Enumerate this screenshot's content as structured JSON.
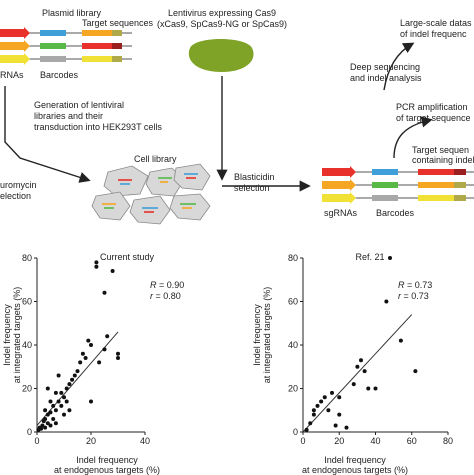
{
  "schematic": {
    "plasmid_library": "Plasmid library",
    "target_sequences": "Target sequences",
    "sgrnas_cut": "RNAs",
    "barcodes_left": "Barcodes",
    "lentivirus_line1": "Lentivirus expressing Cas9",
    "lentivirus_line2": "(xCas9, SpCas9-NG or SpCas9)",
    "generation_line1": "Generation of lentiviral",
    "generation_line2": "libraries and their",
    "generation_line3": "transduction into HEK293T cells",
    "puromycin_line1": "uromycin",
    "puromycin_line2": "election",
    "cell_library": "Cell library",
    "blasticidin_line1": "Blasticidin",
    "blasticidin_line2": "selection",
    "target_containing_line1": "Target sequen",
    "target_containing_line2": "containing indel",
    "sgrnas_right": "sgRNAs",
    "barcodes_right": "Barcodes",
    "pcr_line1": "PCR amplification",
    "pcr_line2": "of target sequence",
    "deep_line1": "Deep sequencing",
    "deep_line2": "and indel analysis",
    "large_line1": "Large-scale datas",
    "large_line2": "of indel frequenc"
  },
  "colors": {
    "red": "#e8312a",
    "orange": "#f5a623",
    "yellow": "#f2e135",
    "blue": "#3f9fd8",
    "green": "#58b947",
    "gray": "#a8a8a8",
    "olive": "#b0a94a",
    "darkred": "#9c1f1f",
    "virus": "#7fa326",
    "cell": "#d8d8d8",
    "cell_stroke": "#888888"
  },
  "chart_data": [
    {
      "type": "scatter",
      "title": "Current study",
      "xlabel_line1": "Indel frequency",
      "xlabel_line2": "at endogenous targets (%)",
      "ylabel_line1": "Indel frequency",
      "ylabel_line2": "at integrated targets (%)",
      "R_label": "R",
      "R_value": " = 0.90",
      "r_label": "r",
      "r_value": " = 0.80",
      "xlim": [
        0,
        40
      ],
      "ylim": [
        0,
        80
      ],
      "xticks": [
        "0",
        "20",
        "40"
      ],
      "yticks": [
        "0",
        "20",
        "40",
        "60",
        "80"
      ],
      "fit": [
        [
          0,
          3
        ],
        [
          30,
          46
        ]
      ],
      "points": [
        [
          0.5,
          1
        ],
        [
          1,
          2
        ],
        [
          1.5,
          1.5
        ],
        [
          2,
          3
        ],
        [
          2.5,
          5
        ],
        [
          3,
          6
        ],
        [
          3,
          2
        ],
        [
          4,
          4
        ],
        [
          4,
          8
        ],
        [
          5,
          3
        ],
        [
          5,
          9
        ],
        [
          6,
          6
        ],
        [
          6,
          12
        ],
        [
          7,
          10
        ],
        [
          7,
          4
        ],
        [
          8,
          14
        ],
        [
          9,
          18
        ],
        [
          10,
          8
        ],
        [
          10,
          16
        ],
        [
          11,
          20
        ],
        [
          12,
          22
        ],
        [
          12,
          10
        ],
        [
          13,
          24
        ],
        [
          14,
          26
        ],
        [
          15,
          28
        ],
        [
          16,
          32
        ],
        [
          17,
          36
        ],
        [
          18,
          34
        ],
        [
          19,
          42
        ],
        [
          20,
          14
        ],
        [
          20,
          40
        ],
        [
          22,
          76
        ],
        [
          22,
          78
        ],
        [
          23,
          32
        ],
        [
          25,
          64
        ],
        [
          25,
          38
        ],
        [
          26,
          44
        ],
        [
          28,
          74
        ],
        [
          30,
          34
        ],
        [
          30,
          36
        ],
        [
          3,
          10
        ],
        [
          5,
          14
        ],
        [
          8,
          26
        ],
        [
          4,
          20
        ],
        [
          7,
          18
        ],
        [
          9,
          12
        ],
        [
          11,
          14
        ]
      ]
    },
    {
      "type": "scatter",
      "title": "Ref. 21",
      "xlabel_line1": "Indel frequency",
      "xlabel_line2": "at endogenous targets (%)",
      "ylabel_line1": "Indel frequency",
      "ylabel_line2": "at integrated targets (%)",
      "R_label": "R",
      "R_value": " = 0.73",
      "r_label": "r",
      "r_value": " = 0.73",
      "xlim": [
        0,
        80
      ],
      "ylim": [
        0,
        80
      ],
      "xticks": [
        "0",
        "20",
        "40",
        "60",
        "80"
      ],
      "yticks": [
        "0",
        "20",
        "40",
        "60",
        "80"
      ],
      "fit": [
        [
          0,
          0
        ],
        [
          60,
          54
        ]
      ],
      "points": [
        [
          2,
          1
        ],
        [
          4,
          4
        ],
        [
          6,
          8
        ],
        [
          8,
          12
        ],
        [
          10,
          14
        ],
        [
          12,
          16
        ],
        [
          14,
          10
        ],
        [
          16,
          18
        ],
        [
          18,
          3
        ],
        [
          20,
          8
        ],
        [
          24,
          2
        ],
        [
          28,
          22
        ],
        [
          30,
          30
        ],
        [
          32,
          33
        ],
        [
          34,
          28
        ],
        [
          36,
          20
        ],
        [
          40,
          20
        ],
        [
          48,
          80
        ],
        [
          46,
          60
        ],
        [
          54,
          42
        ],
        [
          62,
          28
        ],
        [
          20,
          16
        ],
        [
          6,
          10
        ]
      ]
    }
  ]
}
